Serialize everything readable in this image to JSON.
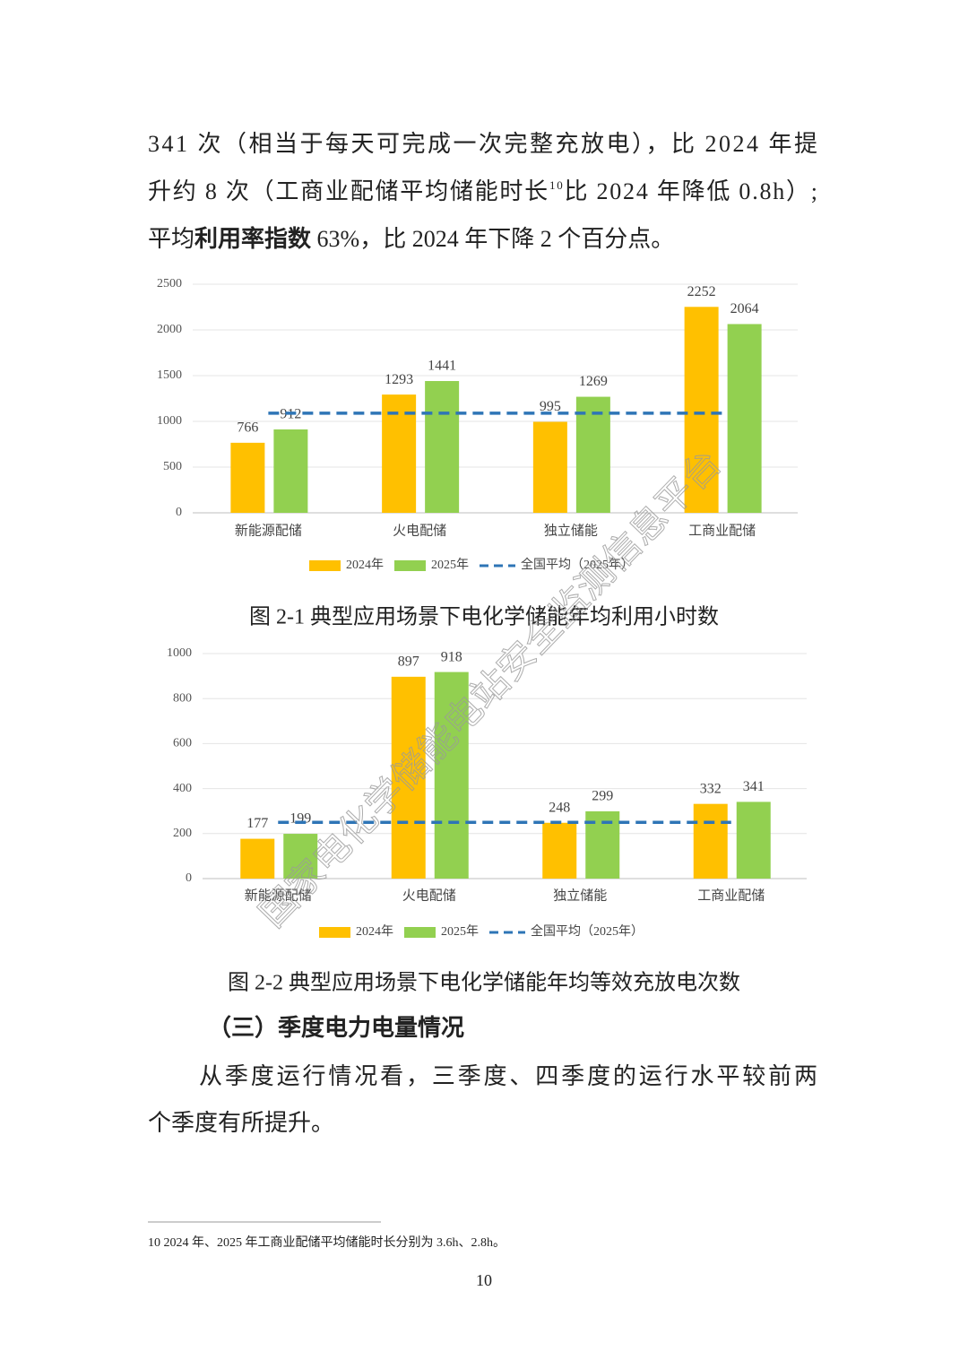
{
  "paragraphs": [
    {
      "lines": [
        [
          {
            "text": "341 次（相当于每天可完成一次完整充放电），比 2024 年提"
          }
        ],
        [
          {
            "text": "升约 8 次（工商业配储平均储能时长"
          },
          {
            "text": "10",
            "sup": true
          },
          {
            "text": "比 2024 年降低 0.8h）;"
          }
        ],
        [
          {
            "text": "平均"
          },
          {
            "text": "利用率指数",
            "bold": true
          },
          {
            "text": " 63%，比 2024 年下降 2 个百分点。"
          }
        ]
      ]
    },
    {
      "lines": [
        [
          {
            "text": "从季度运行情况看，三季度、四季度的运行水平较前两"
          }
        ],
        [
          {
            "text": "个季度有所提升。"
          }
        ]
      ]
    }
  ],
  "heading": "（三）季度电力电量情况",
  "chart_data": [
    {
      "type": "bar",
      "title": "图 2-1  典型应用场景下电化学储能年均利用小时数",
      "categories": [
        "新能源配储",
        "火电配储",
        "独立储能",
        "工商业配储"
      ],
      "series": [
        {
          "name": "2024年",
          "color": "#ffc000",
          "values": [
            766,
            1293,
            995,
            2252
          ]
        },
        {
          "name": "2025年",
          "color": "#92d050",
          "values": [
            912,
            1441,
            1269,
            2064
          ]
        }
      ],
      "reference_line": {
        "name": "全国平均（2025年）",
        "color": "#2e75b6",
        "value": 1090
      },
      "ylim": [
        0,
        2500
      ],
      "yticks": [
        0,
        500,
        1000,
        1500,
        2000,
        2500
      ],
      "grid": true
    },
    {
      "type": "bar",
      "title": "图 2-2 典型应用场景下电化学储能年均等效充放电次数",
      "categories": [
        "新能源配储",
        "火电配储",
        "独立储能",
        "工商业配储"
      ],
      "series": [
        {
          "name": "2024年",
          "color": "#ffc000",
          "values": [
            177,
            897,
            248,
            332
          ]
        },
        {
          "name": "2025年",
          "color": "#92d050",
          "values": [
            199,
            918,
            299,
            341
          ]
        }
      ],
      "reference_line": {
        "name": "全国平均（2025年）",
        "color": "#2e75b6",
        "value": 250
      },
      "ylim": [
        0,
        1000
      ],
      "yticks": [
        0,
        200,
        400,
        600,
        800,
        1000
      ],
      "grid": true
    }
  ],
  "footnote": "10 2024 年、2025 年工商业配储平均储能时长分别为 3.6h、2.8h。",
  "page_number": "10",
  "watermark": "国家电化学储能电站安全监测信息平台"
}
